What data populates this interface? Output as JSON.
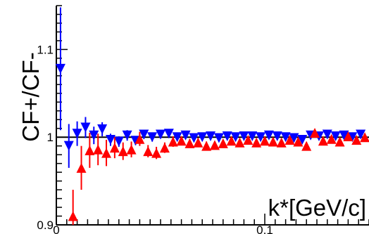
{
  "chart_data": {
    "type": "scatter",
    "title": "",
    "xlabel": "k*[GeV/c]",
    "ylabel": "CF+/CF-",
    "xlim": [
      0,
      0.15
    ],
    "ylim": [
      0.9,
      1.15
    ],
    "x_ticks": [
      "0",
      "0.1"
    ],
    "y_ticks": [
      "0.9",
      "1",
      "1.1"
    ],
    "reference_line_y": 1.0,
    "grid": false,
    "legend": "none",
    "series": [
      {
        "marker": "triangle-down",
        "color": "#0000ff",
        "points": [
          {
            "x": 0.002,
            "y": 1.078,
            "err": 0.07
          },
          {
            "x": 0.006,
            "y": 0.99,
            "err": 0.025
          },
          {
            "x": 0.01,
            "y": 1.004,
            "err": 0.014
          },
          {
            "x": 0.014,
            "y": 1.011,
            "err": 0.012
          },
          {
            "x": 0.018,
            "y": 1.002,
            "err": 0.01
          },
          {
            "x": 0.022,
            "y": 1.009,
            "err": 0.008
          },
          {
            "x": 0.026,
            "y": 0.997,
            "err": 0.007
          },
          {
            "x": 0.03,
            "y": 0.995,
            "err": 0.006
          },
          {
            "x": 0.034,
            "y": 1.002,
            "err": 0.006
          },
          {
            "x": 0.038,
            "y": 0.996,
            "err": 0.005
          },
          {
            "x": 0.042,
            "y": 1.003,
            "err": 0.005
          },
          {
            "x": 0.046,
            "y": 1.0,
            "err": 0.005
          },
          {
            "x": 0.05,
            "y": 1.003,
            "err": 0.004
          },
          {
            "x": 0.054,
            "y": 1.004,
            "err": 0.004
          },
          {
            "x": 0.058,
            "y": 1.0,
            "err": 0.004
          },
          {
            "x": 0.062,
            "y": 1.002,
            "err": 0.004
          },
          {
            "x": 0.066,
            "y": 0.999,
            "err": 0.004
          },
          {
            "x": 0.07,
            "y": 1.0,
            "err": 0.003
          },
          {
            "x": 0.074,
            "y": 1.001,
            "err": 0.003
          },
          {
            "x": 0.078,
            "y": 0.999,
            "err": 0.003
          },
          {
            "x": 0.082,
            "y": 1.001,
            "err": 0.003
          },
          {
            "x": 0.086,
            "y": 1.0,
            "err": 0.003
          },
          {
            "x": 0.09,
            "y": 1.001,
            "err": 0.003
          },
          {
            "x": 0.094,
            "y": 1.001,
            "err": 0.003
          },
          {
            "x": 0.098,
            "y": 1.0,
            "err": 0.003
          },
          {
            "x": 0.102,
            "y": 1.002,
            "err": 0.003
          },
          {
            "x": 0.106,
            "y": 1.001,
            "err": 0.003
          },
          {
            "x": 0.11,
            "y": 1.0,
            "err": 0.003
          },
          {
            "x": 0.114,
            "y": 0.999,
            "err": 0.003
          },
          {
            "x": 0.118,
            "y": 0.997,
            "err": 0.003
          },
          {
            "x": 0.122,
            "y": 1.002,
            "err": 0.003
          },
          {
            "x": 0.126,
            "y": 1.001,
            "err": 0.003
          },
          {
            "x": 0.13,
            "y": 1.003,
            "err": 0.003
          },
          {
            "x": 0.134,
            "y": 1.001,
            "err": 0.003
          },
          {
            "x": 0.138,
            "y": 1.002,
            "err": 0.003
          },
          {
            "x": 0.142,
            "y": 1.0,
            "err": 0.003
          },
          {
            "x": 0.146,
            "y": 1.003,
            "err": 0.003
          }
        ]
      },
      {
        "marker": "triangle-up",
        "color": "#ff0000",
        "points": [
          {
            "x": 0.008,
            "y": 0.91,
            "err": 0.03
          },
          {
            "x": 0.012,
            "y": 0.965,
            "err": 0.025
          },
          {
            "x": 0.016,
            "y": 0.985,
            "err": 0.02
          },
          {
            "x": 0.02,
            "y": 0.986,
            "err": 0.018
          },
          {
            "x": 0.024,
            "y": 0.982,
            "err": 0.015
          },
          {
            "x": 0.028,
            "y": 0.988,
            "err": 0.012
          },
          {
            "x": 0.032,
            "y": 0.984,
            "err": 0.01
          },
          {
            "x": 0.036,
            "y": 0.986,
            "err": 0.009
          },
          {
            "x": 0.04,
            "y": 0.998,
            "err": 0.008
          },
          {
            "x": 0.044,
            "y": 0.984,
            "err": 0.007
          },
          {
            "x": 0.048,
            "y": 0.982,
            "err": 0.007
          },
          {
            "x": 0.052,
            "y": 0.988,
            "err": 0.006
          },
          {
            "x": 0.056,
            "y": 0.995,
            "err": 0.006
          },
          {
            "x": 0.06,
            "y": 0.996,
            "err": 0.005
          },
          {
            "x": 0.064,
            "y": 0.993,
            "err": 0.005
          },
          {
            "x": 0.068,
            "y": 0.994,
            "err": 0.005
          },
          {
            "x": 0.072,
            "y": 0.99,
            "err": 0.005
          },
          {
            "x": 0.076,
            "y": 0.991,
            "err": 0.004
          },
          {
            "x": 0.08,
            "y": 0.993,
            "err": 0.004
          },
          {
            "x": 0.084,
            "y": 0.996,
            "err": 0.004
          },
          {
            "x": 0.088,
            "y": 0.994,
            "err": 0.004
          },
          {
            "x": 0.092,
            "y": 0.997,
            "err": 0.004
          },
          {
            "x": 0.096,
            "y": 0.994,
            "err": 0.004
          },
          {
            "x": 0.1,
            "y": 0.996,
            "err": 0.004
          },
          {
            "x": 0.104,
            "y": 0.995,
            "err": 0.004
          },
          {
            "x": 0.108,
            "y": 0.994,
            "err": 0.004
          },
          {
            "x": 0.112,
            "y": 0.997,
            "err": 0.004
          },
          {
            "x": 0.116,
            "y": 0.995,
            "err": 0.004
          },
          {
            "x": 0.12,
            "y": 0.99,
            "err": 0.004
          },
          {
            "x": 0.124,
            "y": 1.005,
            "err": 0.004
          },
          {
            "x": 0.128,
            "y": 0.996,
            "err": 0.004
          },
          {
            "x": 0.132,
            "y": 0.998,
            "err": 0.004
          },
          {
            "x": 0.136,
            "y": 0.995,
            "err": 0.004
          },
          {
            "x": 0.14,
            "y": 1.001,
            "err": 0.004
          },
          {
            "x": 0.144,
            "y": 0.997,
            "err": 0.004
          },
          {
            "x": 0.148,
            "y": 1.0,
            "err": 0.004
          }
        ]
      }
    ]
  }
}
